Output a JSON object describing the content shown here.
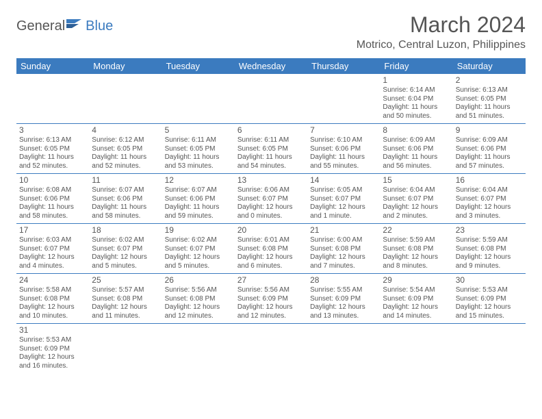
{
  "logo": {
    "text1": "General",
    "text2": "Blue"
  },
  "title": "March 2024",
  "location": "Motrico, Central Luzon, Philippines",
  "colors": {
    "header_bg": "#3b7bbf",
    "header_text": "#ffffff",
    "body_text": "#555555",
    "border": "#3b7bbf",
    "background": "#ffffff"
  },
  "weekdays": [
    "Sunday",
    "Monday",
    "Tuesday",
    "Wednesday",
    "Thursday",
    "Friday",
    "Saturday"
  ],
  "weeks": [
    [
      null,
      null,
      null,
      null,
      null,
      {
        "n": "1",
        "sr": "Sunrise: 6:14 AM",
        "ss": "Sunset: 6:04 PM",
        "dl1": "Daylight: 11 hours",
        "dl2": "and 50 minutes."
      },
      {
        "n": "2",
        "sr": "Sunrise: 6:13 AM",
        "ss": "Sunset: 6:05 PM",
        "dl1": "Daylight: 11 hours",
        "dl2": "and 51 minutes."
      }
    ],
    [
      {
        "n": "3",
        "sr": "Sunrise: 6:13 AM",
        "ss": "Sunset: 6:05 PM",
        "dl1": "Daylight: 11 hours",
        "dl2": "and 52 minutes."
      },
      {
        "n": "4",
        "sr": "Sunrise: 6:12 AM",
        "ss": "Sunset: 6:05 PM",
        "dl1": "Daylight: 11 hours",
        "dl2": "and 52 minutes."
      },
      {
        "n": "5",
        "sr": "Sunrise: 6:11 AM",
        "ss": "Sunset: 6:05 PM",
        "dl1": "Daylight: 11 hours",
        "dl2": "and 53 minutes."
      },
      {
        "n": "6",
        "sr": "Sunrise: 6:11 AM",
        "ss": "Sunset: 6:05 PM",
        "dl1": "Daylight: 11 hours",
        "dl2": "and 54 minutes."
      },
      {
        "n": "7",
        "sr": "Sunrise: 6:10 AM",
        "ss": "Sunset: 6:06 PM",
        "dl1": "Daylight: 11 hours",
        "dl2": "and 55 minutes."
      },
      {
        "n": "8",
        "sr": "Sunrise: 6:09 AM",
        "ss": "Sunset: 6:06 PM",
        "dl1": "Daylight: 11 hours",
        "dl2": "and 56 minutes."
      },
      {
        "n": "9",
        "sr": "Sunrise: 6:09 AM",
        "ss": "Sunset: 6:06 PM",
        "dl1": "Daylight: 11 hours",
        "dl2": "and 57 minutes."
      }
    ],
    [
      {
        "n": "10",
        "sr": "Sunrise: 6:08 AM",
        "ss": "Sunset: 6:06 PM",
        "dl1": "Daylight: 11 hours",
        "dl2": "and 58 minutes."
      },
      {
        "n": "11",
        "sr": "Sunrise: 6:07 AM",
        "ss": "Sunset: 6:06 PM",
        "dl1": "Daylight: 11 hours",
        "dl2": "and 58 minutes."
      },
      {
        "n": "12",
        "sr": "Sunrise: 6:07 AM",
        "ss": "Sunset: 6:06 PM",
        "dl1": "Daylight: 11 hours",
        "dl2": "and 59 minutes."
      },
      {
        "n": "13",
        "sr": "Sunrise: 6:06 AM",
        "ss": "Sunset: 6:07 PM",
        "dl1": "Daylight: 12 hours",
        "dl2": "and 0 minutes."
      },
      {
        "n": "14",
        "sr": "Sunrise: 6:05 AM",
        "ss": "Sunset: 6:07 PM",
        "dl1": "Daylight: 12 hours",
        "dl2": "and 1 minute."
      },
      {
        "n": "15",
        "sr": "Sunrise: 6:04 AM",
        "ss": "Sunset: 6:07 PM",
        "dl1": "Daylight: 12 hours",
        "dl2": "and 2 minutes."
      },
      {
        "n": "16",
        "sr": "Sunrise: 6:04 AM",
        "ss": "Sunset: 6:07 PM",
        "dl1": "Daylight: 12 hours",
        "dl2": "and 3 minutes."
      }
    ],
    [
      {
        "n": "17",
        "sr": "Sunrise: 6:03 AM",
        "ss": "Sunset: 6:07 PM",
        "dl1": "Daylight: 12 hours",
        "dl2": "and 4 minutes."
      },
      {
        "n": "18",
        "sr": "Sunrise: 6:02 AM",
        "ss": "Sunset: 6:07 PM",
        "dl1": "Daylight: 12 hours",
        "dl2": "and 5 minutes."
      },
      {
        "n": "19",
        "sr": "Sunrise: 6:02 AM",
        "ss": "Sunset: 6:07 PM",
        "dl1": "Daylight: 12 hours",
        "dl2": "and 5 minutes."
      },
      {
        "n": "20",
        "sr": "Sunrise: 6:01 AM",
        "ss": "Sunset: 6:08 PM",
        "dl1": "Daylight: 12 hours",
        "dl2": "and 6 minutes."
      },
      {
        "n": "21",
        "sr": "Sunrise: 6:00 AM",
        "ss": "Sunset: 6:08 PM",
        "dl1": "Daylight: 12 hours",
        "dl2": "and 7 minutes."
      },
      {
        "n": "22",
        "sr": "Sunrise: 5:59 AM",
        "ss": "Sunset: 6:08 PM",
        "dl1": "Daylight: 12 hours",
        "dl2": "and 8 minutes."
      },
      {
        "n": "23",
        "sr": "Sunrise: 5:59 AM",
        "ss": "Sunset: 6:08 PM",
        "dl1": "Daylight: 12 hours",
        "dl2": "and 9 minutes."
      }
    ],
    [
      {
        "n": "24",
        "sr": "Sunrise: 5:58 AM",
        "ss": "Sunset: 6:08 PM",
        "dl1": "Daylight: 12 hours",
        "dl2": "and 10 minutes."
      },
      {
        "n": "25",
        "sr": "Sunrise: 5:57 AM",
        "ss": "Sunset: 6:08 PM",
        "dl1": "Daylight: 12 hours",
        "dl2": "and 11 minutes."
      },
      {
        "n": "26",
        "sr": "Sunrise: 5:56 AM",
        "ss": "Sunset: 6:08 PM",
        "dl1": "Daylight: 12 hours",
        "dl2": "and 12 minutes."
      },
      {
        "n": "27",
        "sr": "Sunrise: 5:56 AM",
        "ss": "Sunset: 6:09 PM",
        "dl1": "Daylight: 12 hours",
        "dl2": "and 12 minutes."
      },
      {
        "n": "28",
        "sr": "Sunrise: 5:55 AM",
        "ss": "Sunset: 6:09 PM",
        "dl1": "Daylight: 12 hours",
        "dl2": "and 13 minutes."
      },
      {
        "n": "29",
        "sr": "Sunrise: 5:54 AM",
        "ss": "Sunset: 6:09 PM",
        "dl1": "Daylight: 12 hours",
        "dl2": "and 14 minutes."
      },
      {
        "n": "30",
        "sr": "Sunrise: 5:53 AM",
        "ss": "Sunset: 6:09 PM",
        "dl1": "Daylight: 12 hours",
        "dl2": "and 15 minutes."
      }
    ],
    [
      {
        "n": "31",
        "sr": "Sunrise: 5:53 AM",
        "ss": "Sunset: 6:09 PM",
        "dl1": "Daylight: 12 hours",
        "dl2": "and 16 minutes."
      },
      null,
      null,
      null,
      null,
      null,
      null
    ]
  ]
}
